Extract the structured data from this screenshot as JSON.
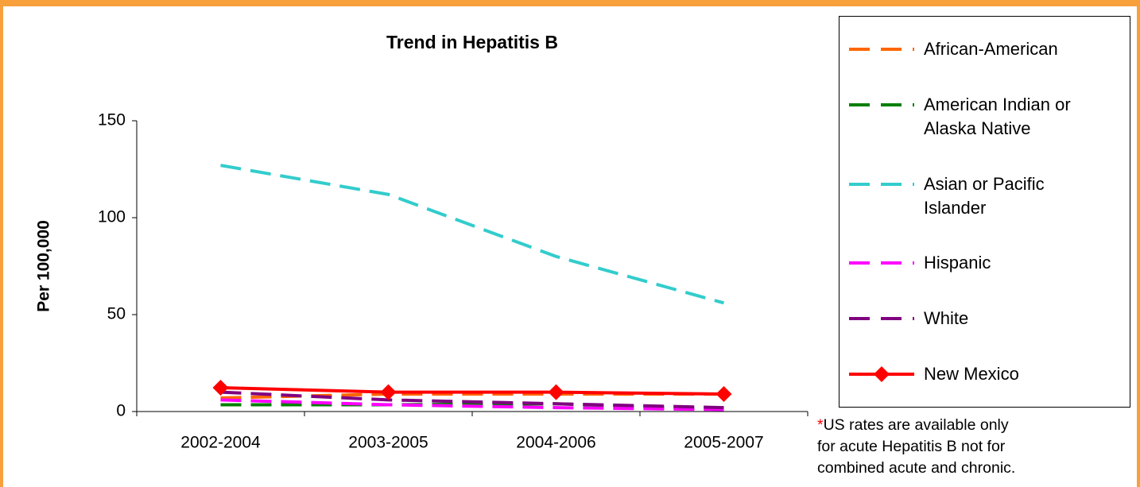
{
  "chart_data": {
    "type": "line",
    "title": "Trend in Hepatitis B",
    "y_label": "Per 100,000",
    "categories": [
      "2002-2004",
      "2003-2005",
      "2004-2006",
      "2005-2007"
    ],
    "ylim": [
      0,
      150
    ],
    "yticks": [
      0,
      50,
      100,
      150
    ],
    "legend": "right",
    "series": [
      {
        "name": "African-American",
        "color": "#ff6600",
        "line_style": "dashed",
        "values": [
          7,
          9,
          9,
          9
        ]
      },
      {
        "name": "American Indian or Alaska Native",
        "color": "#008000",
        "line_style": "dashed",
        "values": [
          3.5,
          3.5,
          4,
          1
        ]
      },
      {
        "name": "Asian or Pacific Islander",
        "color": "#33cccc",
        "line_style": "dashed",
        "values": [
          127,
          112,
          80,
          56
        ]
      },
      {
        "name": "Hispanic",
        "color": "#ff00ff",
        "line_style": "dashed",
        "values": [
          6,
          3.5,
          2,
          1
        ]
      },
      {
        "name": "White",
        "color": "#800080",
        "line_style": "dashed",
        "values": [
          10,
          6,
          4,
          2
        ]
      },
      {
        "name": "New Mexico",
        "color": "#ff0000",
        "line_style": "solid",
        "marker": "diamond",
        "values": [
          12.3,
          10,
          10,
          9
        ]
      }
    ],
    "footnote_marker": "*",
    "footnote_lines": [
      "US rates are available only",
      "for acute Hepatitis B not for",
      "combined acute and chronic."
    ]
  }
}
